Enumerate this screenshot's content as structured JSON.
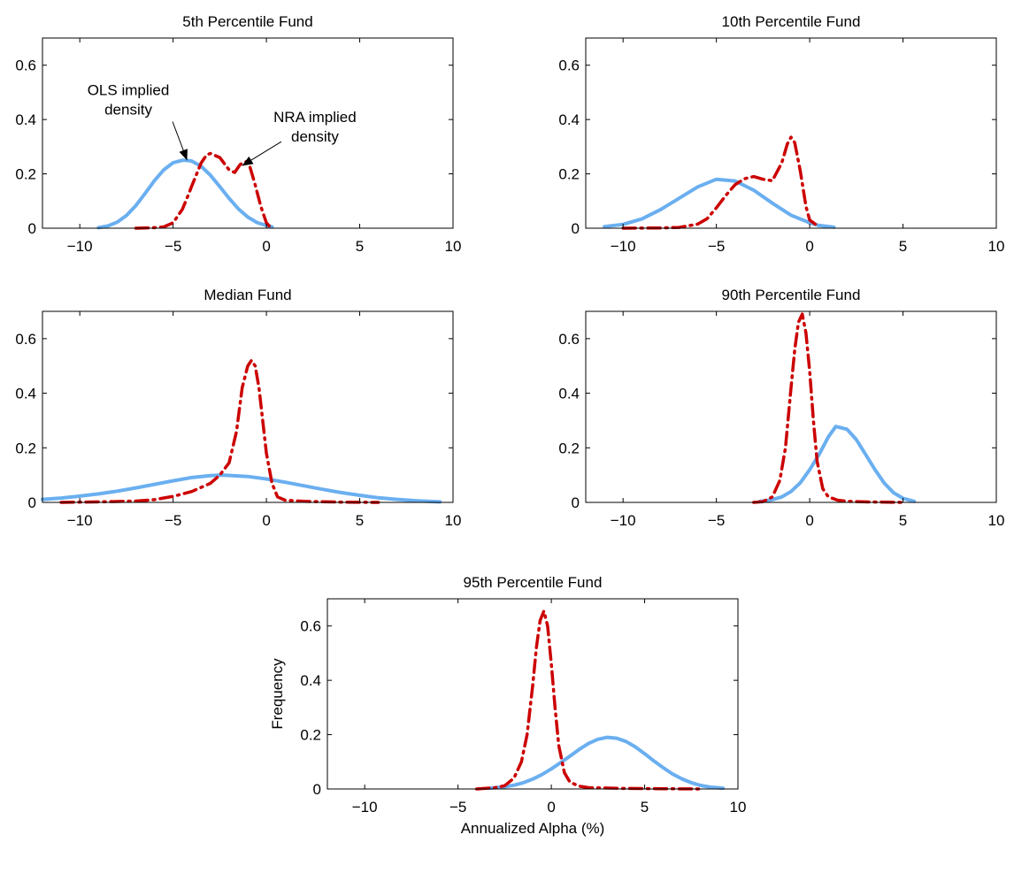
{
  "chart_data": [
    {
      "type": "line",
      "title": "5th Percentile Fund",
      "xlabel": "",
      "ylabel": "",
      "xlim": [
        -12,
        10
      ],
      "ylim": [
        0,
        0.7
      ],
      "xticks": [
        -10,
        -5,
        0,
        5,
        10
      ],
      "xtick_labels": [
        "−10",
        "−5",
        "0",
        "5",
        "10"
      ],
      "yticks": [
        0,
        0.2,
        0.4,
        0.6
      ],
      "ytick_labels": [
        "0",
        "0.2",
        "0.4",
        "0.6"
      ],
      "grid": false,
      "series": [
        {
          "name": "OLS implied density",
          "style": "solid",
          "color": "#6aaff0",
          "x": [
            -9,
            -8.5,
            -8,
            -7.5,
            -7,
            -6.5,
            -6,
            -5.5,
            -5,
            -4.5,
            -4.3,
            -4,
            -3.5,
            -3,
            -2.5,
            -2,
            -1.5,
            -1,
            -0.5,
            0,
            0.3
          ],
          "y": [
            0.002,
            0.008,
            0.022,
            0.047,
            0.083,
            0.128,
            0.175,
            0.215,
            0.241,
            0.25,
            0.25,
            0.247,
            0.228,
            0.195,
            0.153,
            0.11,
            0.071,
            0.041,
            0.021,
            0.01,
            0.005
          ]
        },
        {
          "name": "NRA implied density",
          "style": "dashdot",
          "color": "#cc0000",
          "x": [
            -7,
            -6,
            -5.5,
            -5,
            -4.5,
            -4.2,
            -4,
            -3.5,
            -3.2,
            -3,
            -2.5,
            -2,
            -1.7,
            -1.4,
            -1.1,
            -0.9,
            -0.6,
            -0.3,
            0,
            0.2
          ],
          "y": [
            0,
            0.002,
            0.005,
            0.02,
            0.07,
            0.12,
            0.155,
            0.24,
            0.27,
            0.275,
            0.26,
            0.215,
            0.205,
            0.235,
            0.245,
            0.23,
            0.16,
            0.08,
            0.02,
            0.005
          ]
        }
      ],
      "annotations": [
        {
          "lines": [
            "OLS implied",
            "density"
          ],
          "x": -4.25,
          "y": 0.25,
          "text_x": -7.4,
          "text_y": 0.49
        },
        {
          "lines": [
            "NRA implied",
            "density"
          ],
          "x": -1.3,
          "y": 0.23,
          "text_x": 2.6,
          "text_y": 0.39
        }
      ]
    },
    {
      "type": "line",
      "title": "10th Percentile Fund",
      "xlabel": "",
      "ylabel": "",
      "xlim": [
        -12,
        10
      ],
      "ylim": [
        0,
        0.7
      ],
      "xticks": [
        -10,
        -5,
        0,
        5,
        10
      ],
      "xtick_labels": [
        "−10",
        "−5",
        "0",
        "5",
        "10"
      ],
      "yticks": [
        0,
        0.2,
        0.4,
        0.6
      ],
      "ytick_labels": [
        "0",
        "0.2",
        "0.4",
        "0.6"
      ],
      "grid": false,
      "series": [
        {
          "name": "OLS",
          "style": "solid",
          "color": "#6aaff0",
          "x": [
            -11,
            -10,
            -9,
            -8,
            -7,
            -6,
            -5,
            -4,
            -3,
            -2,
            -1,
            0,
            0.5,
            1.3
          ],
          "y": [
            0.006,
            0.014,
            0.034,
            0.068,
            0.11,
            0.152,
            0.18,
            0.174,
            0.14,
            0.092,
            0.048,
            0.02,
            0.01,
            0.004
          ]
        },
        {
          "name": "NRA",
          "style": "dashdot",
          "color": "#cc0000",
          "x": [
            -10,
            -8,
            -7,
            -6,
            -5.5,
            -5,
            -4.5,
            -4,
            -3.5,
            -3,
            -2.5,
            -2,
            -1.5,
            -1.2,
            -1,
            -0.8,
            -0.5,
            -0.2,
            0,
            0.5
          ],
          "y": [
            0,
            0.001,
            0.003,
            0.015,
            0.035,
            0.075,
            0.12,
            0.16,
            0.182,
            0.19,
            0.18,
            0.175,
            0.24,
            0.31,
            0.335,
            0.315,
            0.21,
            0.08,
            0.03,
            0.005
          ]
        }
      ]
    },
    {
      "type": "line",
      "title": "Median Fund",
      "xlabel": "",
      "ylabel": "",
      "xlim": [
        -12,
        10
      ],
      "ylim": [
        0,
        0.7
      ],
      "xticks": [
        -10,
        -5,
        0,
        5,
        10
      ],
      "xtick_labels": [
        "−10",
        "−5",
        "0",
        "5",
        "10"
      ],
      "yticks": [
        0,
        0.2,
        0.4,
        0.6
      ],
      "ytick_labels": [
        "0",
        "0.2",
        "0.4",
        "0.6"
      ],
      "grid": false,
      "series": [
        {
          "name": "OLS",
          "style": "solid",
          "color": "#6aaff0",
          "x": [
            -12,
            -11,
            -10,
            -9,
            -8,
            -7,
            -6,
            -5,
            -4,
            -3,
            -2.5,
            -2,
            -1,
            0,
            1,
            2,
            3,
            4,
            5,
            6,
            7,
            8,
            9,
            9.3
          ],
          "y": [
            0.011,
            0.016,
            0.023,
            0.031,
            0.041,
            0.053,
            0.066,
            0.079,
            0.091,
            0.098,
            0.1,
            0.099,
            0.095,
            0.086,
            0.074,
            0.061,
            0.048,
            0.036,
            0.026,
            0.017,
            0.011,
            0.006,
            0.003,
            0.002
          ]
        },
        {
          "name": "NRA",
          "style": "dashdot",
          "color": "#cc0000",
          "x": [
            -11,
            -9,
            -7,
            -6,
            -5,
            -4,
            -3,
            -2.5,
            -2,
            -1.6,
            -1.3,
            -1,
            -0.8,
            -0.6,
            -0.4,
            -0.2,
            0,
            0.3,
            0.6,
            1,
            2,
            4,
            6
          ],
          "y": [
            0,
            0.002,
            0.005,
            0.01,
            0.022,
            0.04,
            0.07,
            0.1,
            0.145,
            0.26,
            0.42,
            0.5,
            0.52,
            0.5,
            0.42,
            0.3,
            0.18,
            0.07,
            0.02,
            0.008,
            0.004,
            0.001,
            0
          ]
        }
      ]
    },
    {
      "type": "line",
      "title": "90th Percentile Fund",
      "xlabel": "",
      "ylabel": "",
      "xlim": [
        -12,
        10
      ],
      "ylim": [
        0,
        0.7
      ],
      "xticks": [
        -10,
        -5,
        0,
        5,
        10
      ],
      "xtick_labels": [
        "−10",
        "−5",
        "0",
        "5",
        "10"
      ],
      "yticks": [
        0,
        0.2,
        0.4,
        0.6
      ],
      "ytick_labels": [
        "0",
        "0.2",
        "0.4",
        "0.6"
      ],
      "grid": false,
      "series": [
        {
          "name": "OLS",
          "style": "solid",
          "color": "#6aaff0",
          "x": [
            -2.7,
            -2,
            -1.5,
            -1,
            -0.5,
            0,
            0.5,
            1,
            1.4,
            2,
            2.5,
            3,
            3.5,
            4,
            4.5,
            5,
            5.6
          ],
          "y": [
            0.003,
            0.01,
            0.02,
            0.04,
            0.072,
            0.12,
            0.175,
            0.24,
            0.278,
            0.268,
            0.23,
            0.175,
            0.12,
            0.07,
            0.035,
            0.015,
            0.004
          ]
        },
        {
          "name": "NRA",
          "style": "dashdot",
          "color": "#cc0000",
          "x": [
            -3,
            -2.5,
            -2,
            -1.6,
            -1.3,
            -1,
            -0.8,
            -0.6,
            -0.4,
            -0.2,
            0,
            0.2,
            0.4,
            0.7,
            1,
            1.5,
            2,
            3,
            5
          ],
          "y": [
            0,
            0.003,
            0.02,
            0.08,
            0.2,
            0.42,
            0.56,
            0.66,
            0.69,
            0.62,
            0.48,
            0.3,
            0.15,
            0.05,
            0.02,
            0.008,
            0.004,
            0.002,
            0
          ]
        }
      ]
    },
    {
      "type": "line",
      "title": "95th Percentile Fund",
      "xlabel": "Annualized Alpha (%)",
      "ylabel": "Frequency",
      "xlim": [
        -12,
        10
      ],
      "ylim": [
        0,
        0.7
      ],
      "xticks": [
        -10,
        -5,
        0,
        5,
        10
      ],
      "xtick_labels": [
        "−10",
        "−5",
        "0",
        "5",
        "10"
      ],
      "yticks": [
        0,
        0.2,
        0.4,
        0.6
      ],
      "ytick_labels": [
        "0",
        "0.2",
        "0.4",
        "0.6"
      ],
      "grid": false,
      "series": [
        {
          "name": "OLS",
          "style": "solid",
          "color": "#6aaff0",
          "x": [
            -3.3,
            -2.5,
            -2,
            -1.5,
            -1,
            -0.5,
            0,
            0.5,
            1,
            1.5,
            2,
            2.5,
            3,
            3.5,
            4,
            4.5,
            5,
            5.5,
            6,
            6.5,
            7,
            7.5,
            8,
            8.5,
            9.2
          ],
          "y": [
            0.003,
            0.008,
            0.014,
            0.023,
            0.036,
            0.053,
            0.074,
            0.097,
            0.121,
            0.146,
            0.168,
            0.183,
            0.19,
            0.187,
            0.175,
            0.155,
            0.13,
            0.103,
            0.078,
            0.055,
            0.037,
            0.023,
            0.013,
            0.007,
            0.003
          ]
        },
        {
          "name": "NRA",
          "style": "dashdot",
          "color": "#cc0000",
          "x": [
            -4,
            -3,
            -2.5,
            -2,
            -1.6,
            -1.3,
            -1,
            -0.8,
            -0.6,
            -0.4,
            -0.2,
            0,
            0.2,
            0.4,
            0.7,
            1,
            1.5,
            2,
            4,
            6,
            8
          ],
          "y": [
            0,
            0.005,
            0.012,
            0.04,
            0.1,
            0.2,
            0.38,
            0.52,
            0.62,
            0.655,
            0.6,
            0.46,
            0.3,
            0.16,
            0.06,
            0.025,
            0.01,
            0.005,
            0.002,
            0.001,
            0
          ]
        }
      ]
    }
  ]
}
